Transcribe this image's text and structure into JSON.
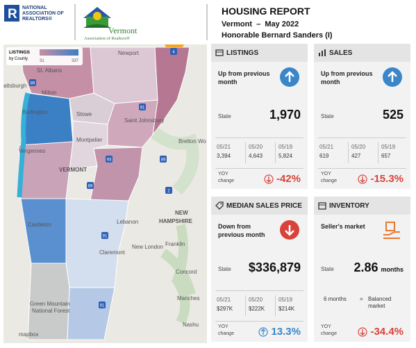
{
  "header": {
    "nar_logo_text": [
      "NATIONAL",
      "ASSOCIATION OF",
      "REALTORS®"
    ],
    "vt_logo_name": "Vermont",
    "vt_logo_sub": "Association of Realtors®",
    "title": "HOUSING REPORT",
    "subtitle": "Vermont  –  May 2022",
    "member": "Honorable Bernard Sanders (I)"
  },
  "map": {
    "legend": {
      "title": "LISTINGS",
      "subtitle": "by County",
      "min": "31",
      "max": "337"
    },
    "labels": [
      "Newport",
      "St. Albans",
      "attsburgh",
      "Milton",
      "Burlington",
      "Stowe",
      "Saint Johnsbury",
      "Montpelier",
      "Vergennes",
      "Bretton Wo",
      "VERMONT",
      "NEW",
      "HAMPSHIRE",
      "Lebanon",
      "Castleton",
      "Claremont",
      "New London",
      "Franklin",
      "Concord",
      "Green Mountain",
      "National Forest",
      "Manches",
      "Nashu",
      "mapbox"
    ],
    "shields": [
      "91",
      "89",
      "89",
      "93",
      "2",
      "91",
      "89",
      "91",
      "4"
    ]
  },
  "cards": [
    {
      "title": "LISTINGS",
      "trend": "Up from previous month",
      "direction": "up",
      "state_label": "State",
      "value": "1,970",
      "history": [
        {
          "period": "05/21",
          "value": "3,394"
        },
        {
          "period": "05/20",
          "value": "4,643"
        },
        {
          "period": "05/19",
          "value": "5,824"
        }
      ],
      "yoy_label": "YOY change",
      "yoy": "-42%",
      "yoy_direction": "down"
    },
    {
      "title": "SALES",
      "trend": "Up from previous month",
      "direction": "up",
      "state_label": "State",
      "value": "525",
      "history": [
        {
          "period": "05/21",
          "value": "619"
        },
        {
          "period": "05/20",
          "value": "427"
        },
        {
          "period": "05/19",
          "value": "657"
        }
      ],
      "yoy_label": "YOY change",
      "yoy": "-15.3%",
      "yoy_direction": "down"
    },
    {
      "title": "MEDIAN SALES PRICE",
      "trend": "Down from previous month",
      "direction": "down",
      "state_label": "State",
      "value": "$336,879",
      "history": [
        {
          "period": "05/21",
          "value": "$297K"
        },
        {
          "period": "05/20",
          "value": "$222K"
        },
        {
          "period": "05/19",
          "value": "$214K"
        }
      ],
      "yoy_label": "YOY change",
      "yoy": "13.3%",
      "yoy_direction": "up"
    },
    {
      "title": "INVENTORY",
      "trend": "Seller's market",
      "direction": "market",
      "state_label": "State",
      "value": "2.86",
      "unit": "months",
      "note": {
        "left": "6 months",
        "symbol": "=",
        "right": "Balanced market"
      },
      "yoy_label": "YOY change",
      "yoy": "-34.4%",
      "yoy_direction": "down"
    }
  ]
}
